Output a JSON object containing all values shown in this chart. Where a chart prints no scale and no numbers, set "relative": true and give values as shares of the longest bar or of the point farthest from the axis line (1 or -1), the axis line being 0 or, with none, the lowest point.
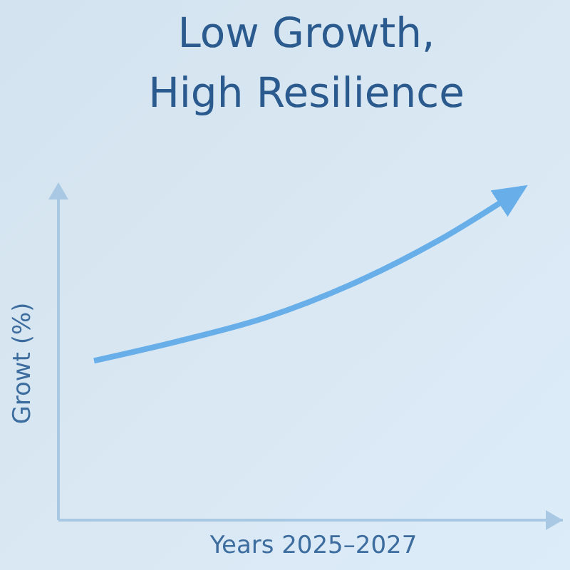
{
  "chart_data": {
    "type": "line",
    "title": "Low Growth, High Resilience",
    "xlabel": "Years 2025–2027",
    "ylabel": "Growt (%)",
    "relative": true,
    "categories": [
      null,
      null,
      null,
      null,
      null,
      null
    ],
    "series": [
      {
        "color": "#68aee9",
        "values": [
          0.48,
          0.54,
          0.61,
          0.71,
          0.84,
          1
        ]
      }
    ]
  }
}
